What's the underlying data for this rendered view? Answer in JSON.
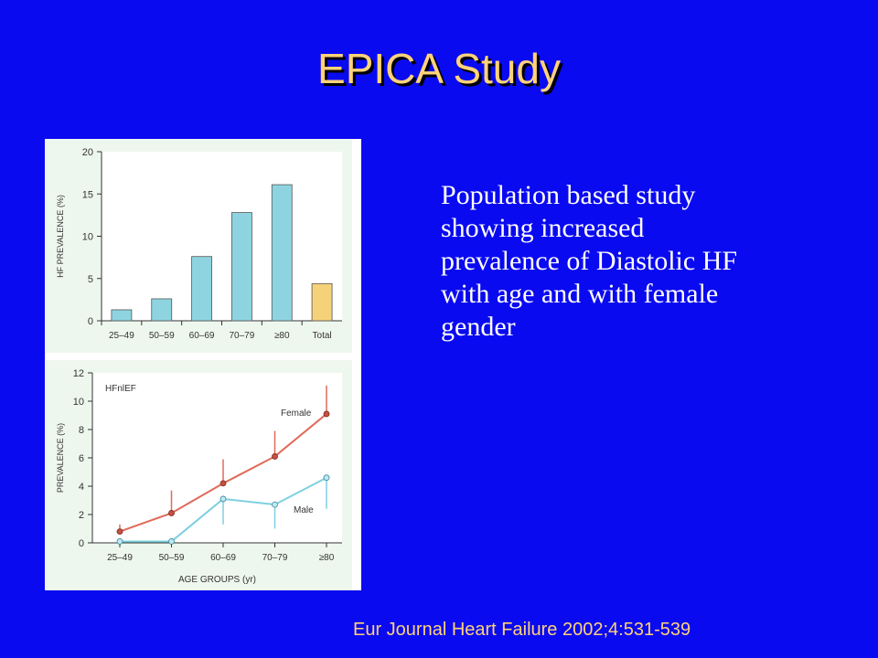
{
  "slide": {
    "title": "EPICA Study",
    "body_lines": [
      "Population based study",
      "showing increased",
      "prevalence of Diastolic HF",
      "with age and with female",
      "gender"
    ],
    "citation": "Eur Journal Heart Failure 2002;4:531-539"
  },
  "colors": {
    "background": "#0a0af0",
    "title": "#ffd27a",
    "bar_age": "#8ed4e0",
    "bar_total": "#f5d27a",
    "female": "#e06a5a",
    "male": "#7fd0e0"
  },
  "chart_data": [
    {
      "type": "bar",
      "title": "",
      "xlabel": "",
      "ylabel": "HF PREVALENCE (%)",
      "ylim": [
        0,
        20
      ],
      "yticks": [
        "0",
        "5",
        "10",
        "15",
        "20"
      ],
      "categories": [
        "25–49",
        "50–59",
        "60–69",
        "70–79",
        "≥80",
        "Total"
      ],
      "values": [
        1.3,
        2.6,
        7.6,
        12.8,
        16.1,
        4.4
      ],
      "grid": false
    },
    {
      "type": "line",
      "title": "",
      "annotation": "HFnlEF",
      "xlabel": "AGE GROUPS (yr)",
      "ylabel": "PREVALENCE (%)",
      "ylim": [
        0,
        12
      ],
      "yticks": [
        "0",
        "2",
        "4",
        "6",
        "8",
        "10",
        "12"
      ],
      "categories": [
        "25–49",
        "50–59",
        "60–69",
        "70–79",
        "≥80"
      ],
      "series": [
        {
          "name": "Female",
          "values": [
            0.8,
            2.1,
            4.2,
            6.1,
            9.1
          ],
          "err_up": [
            0.5,
            1.6,
            1.7,
            1.8,
            2.0
          ]
        },
        {
          "name": "Male",
          "values": [
            0.1,
            0.1,
            3.1,
            2.7,
            4.6
          ],
          "err_down": [
            0.0,
            0.0,
            1.8,
            1.7,
            2.2
          ]
        }
      ],
      "legend": "inline",
      "grid": false
    }
  ]
}
